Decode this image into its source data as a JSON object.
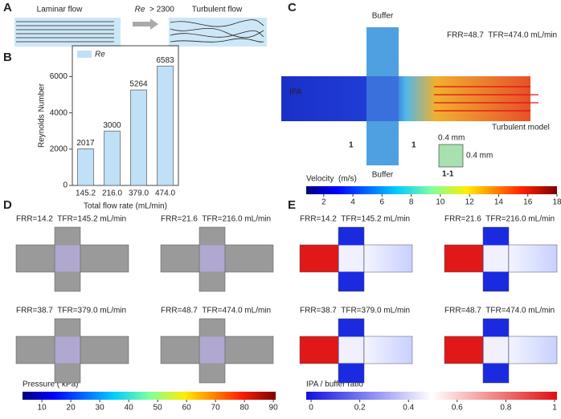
{
  "panel_labels": [
    "A",
    "B",
    "C",
    "D",
    "E"
  ],
  "panel_a": {
    "laminar": "Laminar flow",
    "turbulent": "Turbulent flow",
    "re_symbol": "Re",
    "re_condition": "> 2300"
  },
  "chart_data": {
    "type": "bar",
    "categories": [
      "145.2",
      "216.0",
      "379.0",
      "474.0"
    ],
    "series": [
      {
        "name": "Re",
        "color": "#bfe0f7",
        "values": [
          2017,
          3000,
          5264,
          6583
        ]
      }
    ],
    "ylim": [
      0,
      7700
    ],
    "yticks": [
      0,
      2000,
      4000,
      6000
    ],
    "y_label": "Reynolds Number",
    "x_label": "Total flow rate (mL/min)",
    "legend": "upper left"
  },
  "panel_c": {
    "buffer_top": "Buffer",
    "buffer_bottom": "Buffer",
    "inlet": "IPA",
    "condition": "FRR=48.7  TFR=474.0 mL/min",
    "model": "Turbulent model",
    "width": "0.4 mm",
    "height": "0.4 mm",
    "section": "1-1",
    "cut_left": "1",
    "cut_right": "1",
    "colorbar": {
      "label": "Velocity  (m/s)",
      "lim": [
        0.8,
        18
      ],
      "ticks": [
        2,
        4,
        6,
        8,
        10,
        12,
        14,
        16,
        18
      ]
    }
  },
  "panel_d": {
    "conditions": [
      "FRR=14.2  TFR=145.2 mL/min",
      "FRR=21.6  TFR=216.0 mL/min",
      "FRR=38.7  TFR=379.0 mL/min",
      "FRR=48.7  TFR=474.0 mL/min"
    ],
    "colorbar": {
      "label": "Pressure ( kPa)",
      "lim": [
        3.3,
        90.8
      ],
      "ticks": [
        10,
        20,
        30,
        40,
        50,
        60,
        70,
        80,
        90
      ]
    }
  },
  "panel_e": {
    "conditions": [
      "FRR=14.2  TFR=145.2 mL/min",
      "FRR=21.6  TFR=216.0 mL/min",
      "FRR=38.7  TFR=379.0 mL/min",
      "FRR=48.7  TFR=474.0 mL/min"
    ],
    "colorbar": {
      "label": "IPA / buffer ratio",
      "lim": [
        -0.02,
        1.01
      ],
      "ticks": [
        0,
        0.2,
        0.4,
        0.6,
        0.8,
        1
      ]
    }
  }
}
